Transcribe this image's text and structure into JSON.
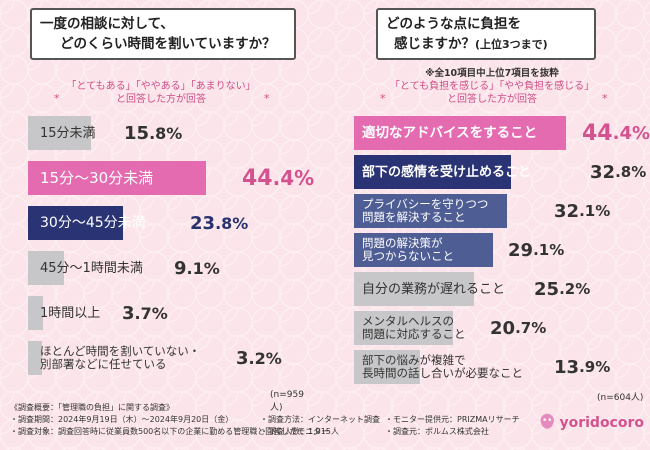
{
  "chart_data": [
    {
      "type": "bar",
      "title": "一度の相談に対して、どのくらい時間を割いていますか？",
      "title_lines": [
        "一度の相談に対して、",
        "どのくらい時間を割いていますか？"
      ],
      "subtitle": "「とてもある」「ややある」「あまりない」と回答した方が回答",
      "subtitle_lines": [
        "「とてもある」「ややある」「あまりない」",
        "と回答した方が回答"
      ],
      "categories": [
        "15分未満",
        "15分〜30分未満",
        "30分〜45分未満",
        "45分〜1時間未満",
        "1時間以上",
        "ほとんど時間を割いていない・別部署などに任せている"
      ],
      "values": [
        15.8,
        44.4,
        23.8,
        9.1,
        3.7,
        3.2
      ],
      "unit": "%",
      "n_label": "(n=959人)",
      "xlim": [
        0,
        44.4
      ]
    },
    {
      "type": "bar",
      "title": "どのような点に負担を感じますか？(上位3つまで)",
      "title_lines": [
        "どのような点に負担を",
        "感じますか？"
      ],
      "title_suffix": "(上位3つまで)",
      "note": "※全10項目中上位7項目を抜粋",
      "subtitle": "「とても負担を感じる」「やや負担を感じる」と回答した方が回答",
      "subtitle_lines": [
        "「とても負担を感じる」「やや負担を感じる」",
        "と回答した方が回答"
      ],
      "categories": [
        "適切なアドバイスをすること",
        "部下の感情を受け止めること",
        "プライバシーを守りつつ問題を解決すること",
        "問題の解決策が見つからないこと",
        "自分の業務が遅れること",
        "メンタルヘルスの問題に対応すること",
        "部下の悩みが複雑で長時間の話し合いが必要なこと"
      ],
      "values": [
        44.4,
        32.8,
        32.1,
        29.1,
        25.2,
        20.7,
        13.9
      ],
      "unit": "%",
      "n_label": "(n=604人)",
      "xlim": [
        0,
        44.4
      ]
    }
  ],
  "left_labels": [
    [
      "15分未満"
    ],
    [
      "15分〜30分未満"
    ],
    [
      "30分〜45分未満"
    ],
    [
      "45分〜1時間未満"
    ],
    [
      "1時間以上"
    ],
    [
      "ほとんど時間を割いていない・",
      "別部署などに任せている"
    ]
  ],
  "right_labels": [
    [
      "適切なアドバイスをすること"
    ],
    [
      "部下の感情を受け止めること"
    ],
    [
      "プライバシーを守りつつ",
      "問題を解決すること"
    ],
    [
      "問題の解決策が",
      "見つからないこと"
    ],
    [
      "自分の業務が遅れること"
    ],
    [
      "メンタルヘルスの",
      "問題に対応すること"
    ],
    [
      "部下の悩みが複雑で",
      "長時間の話し合いが必要なこと"
    ]
  ],
  "footer": {
    "line1": "《調査概要：「管理職の負担」に関する調査》",
    "items": [
      [
        "・調査期間：2024年9月19日（木）〜2024年9月20日（金）",
        "・調査方法：インターネット調査",
        "・モニター提供元：PRIZMAリサーチ"
      ],
      [
        "・調査対象：調査回答時に従業員数500名以下の企業に勤める管理職と回答したモニター",
        "・調査人数：1,015人",
        "・調査元：ポルムス株式会社"
      ]
    ]
  },
  "logo": {
    "text": "yoridocoro"
  },
  "colors": {
    "highlight": "#e46bb0",
    "navy": "#2a3475",
    "slate": "#4f5d95",
    "grey": "#c7c7c9",
    "accent_text": "#d4538f"
  }
}
